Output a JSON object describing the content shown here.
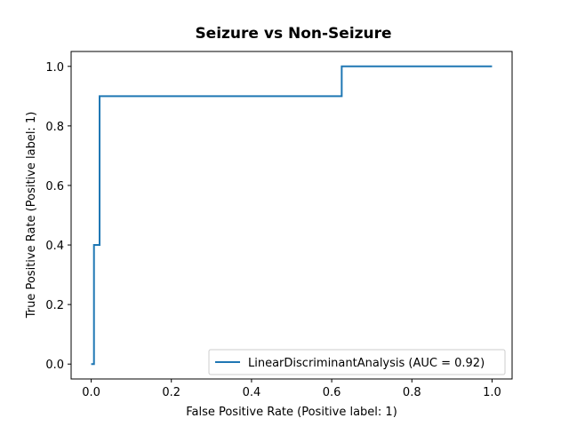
{
  "chart_data": {
    "type": "line",
    "title": "Seizure vs Non-Seizure",
    "xlabel": "False Positive Rate (Positive label: 1)",
    "ylabel": "True Positive Rate (Positive label: 1)",
    "xlim": [
      -0.05,
      1.05
    ],
    "ylim": [
      -0.05,
      1.05
    ],
    "xticks": [
      0.0,
      0.2,
      0.4,
      0.6,
      0.8,
      1.0
    ],
    "yticks": [
      0.0,
      0.2,
      0.4,
      0.6,
      0.8,
      1.0
    ],
    "xtick_labels": [
      "0.0",
      "0.2",
      "0.4",
      "0.6",
      "0.8",
      "1.0"
    ],
    "ytick_labels": [
      "0.0",
      "0.2",
      "0.4",
      "0.6",
      "0.8",
      "1.0"
    ],
    "grid": false,
    "legend_position": "lower-right",
    "series": [
      {
        "name": "LinearDiscriminantAnalysis (AUC = 0.92)",
        "color": "#1f77b4",
        "drawstyle": "steps-post",
        "x": [
          0.0,
          0.007,
          0.007,
          0.021,
          0.021,
          0.625,
          0.625,
          1.0
        ],
        "y": [
          0.0,
          0.0,
          0.4,
          0.4,
          0.9,
          0.9,
          1.0,
          1.0
        ]
      }
    ]
  }
}
